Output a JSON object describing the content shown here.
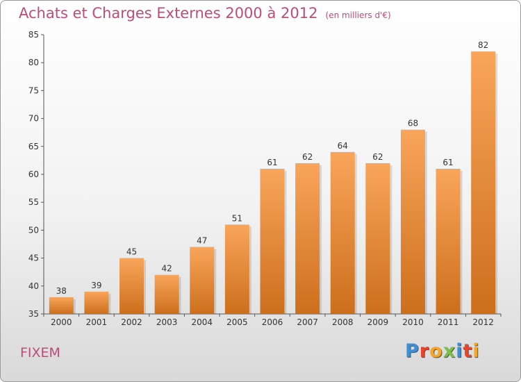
{
  "header": {
    "title": "Achats et Charges Externes 2000 à 2012",
    "unit": "(en milliers d'€)"
  },
  "footer": {
    "commune": "FIXEM"
  },
  "logo": {
    "letters": [
      "P",
      "r",
      "o",
      "x",
      "i",
      "t",
      "i"
    ],
    "colors": [
      "#3d8fd6",
      "#e8452c",
      "#f5a623",
      "#7ac143",
      "#3d8fd6",
      "#e8452c",
      "#f5a623"
    ]
  },
  "colors": {
    "bar_top": "#f9a55a",
    "bar_bottom": "#cc6f1c",
    "text": "#333333",
    "title": "#c04a7a"
  },
  "chart_data": {
    "type": "bar",
    "title": "Achats et Charges Externes 2000 à 2012",
    "xlabel": "",
    "ylabel": "",
    "categories": [
      "2000",
      "2001",
      "2002",
      "2003",
      "2004",
      "2005",
      "2006",
      "2007",
      "2008",
      "2009",
      "2010",
      "2011",
      "2012"
    ],
    "values": [
      38,
      39,
      45,
      42,
      47,
      51,
      61,
      62,
      64,
      62,
      68,
      61,
      82
    ],
    "ylim": [
      35,
      85
    ],
    "yticks": [
      35,
      40,
      45,
      50,
      55,
      60,
      65,
      70,
      75,
      80,
      85
    ],
    "grid": false,
    "legend": "none"
  }
}
